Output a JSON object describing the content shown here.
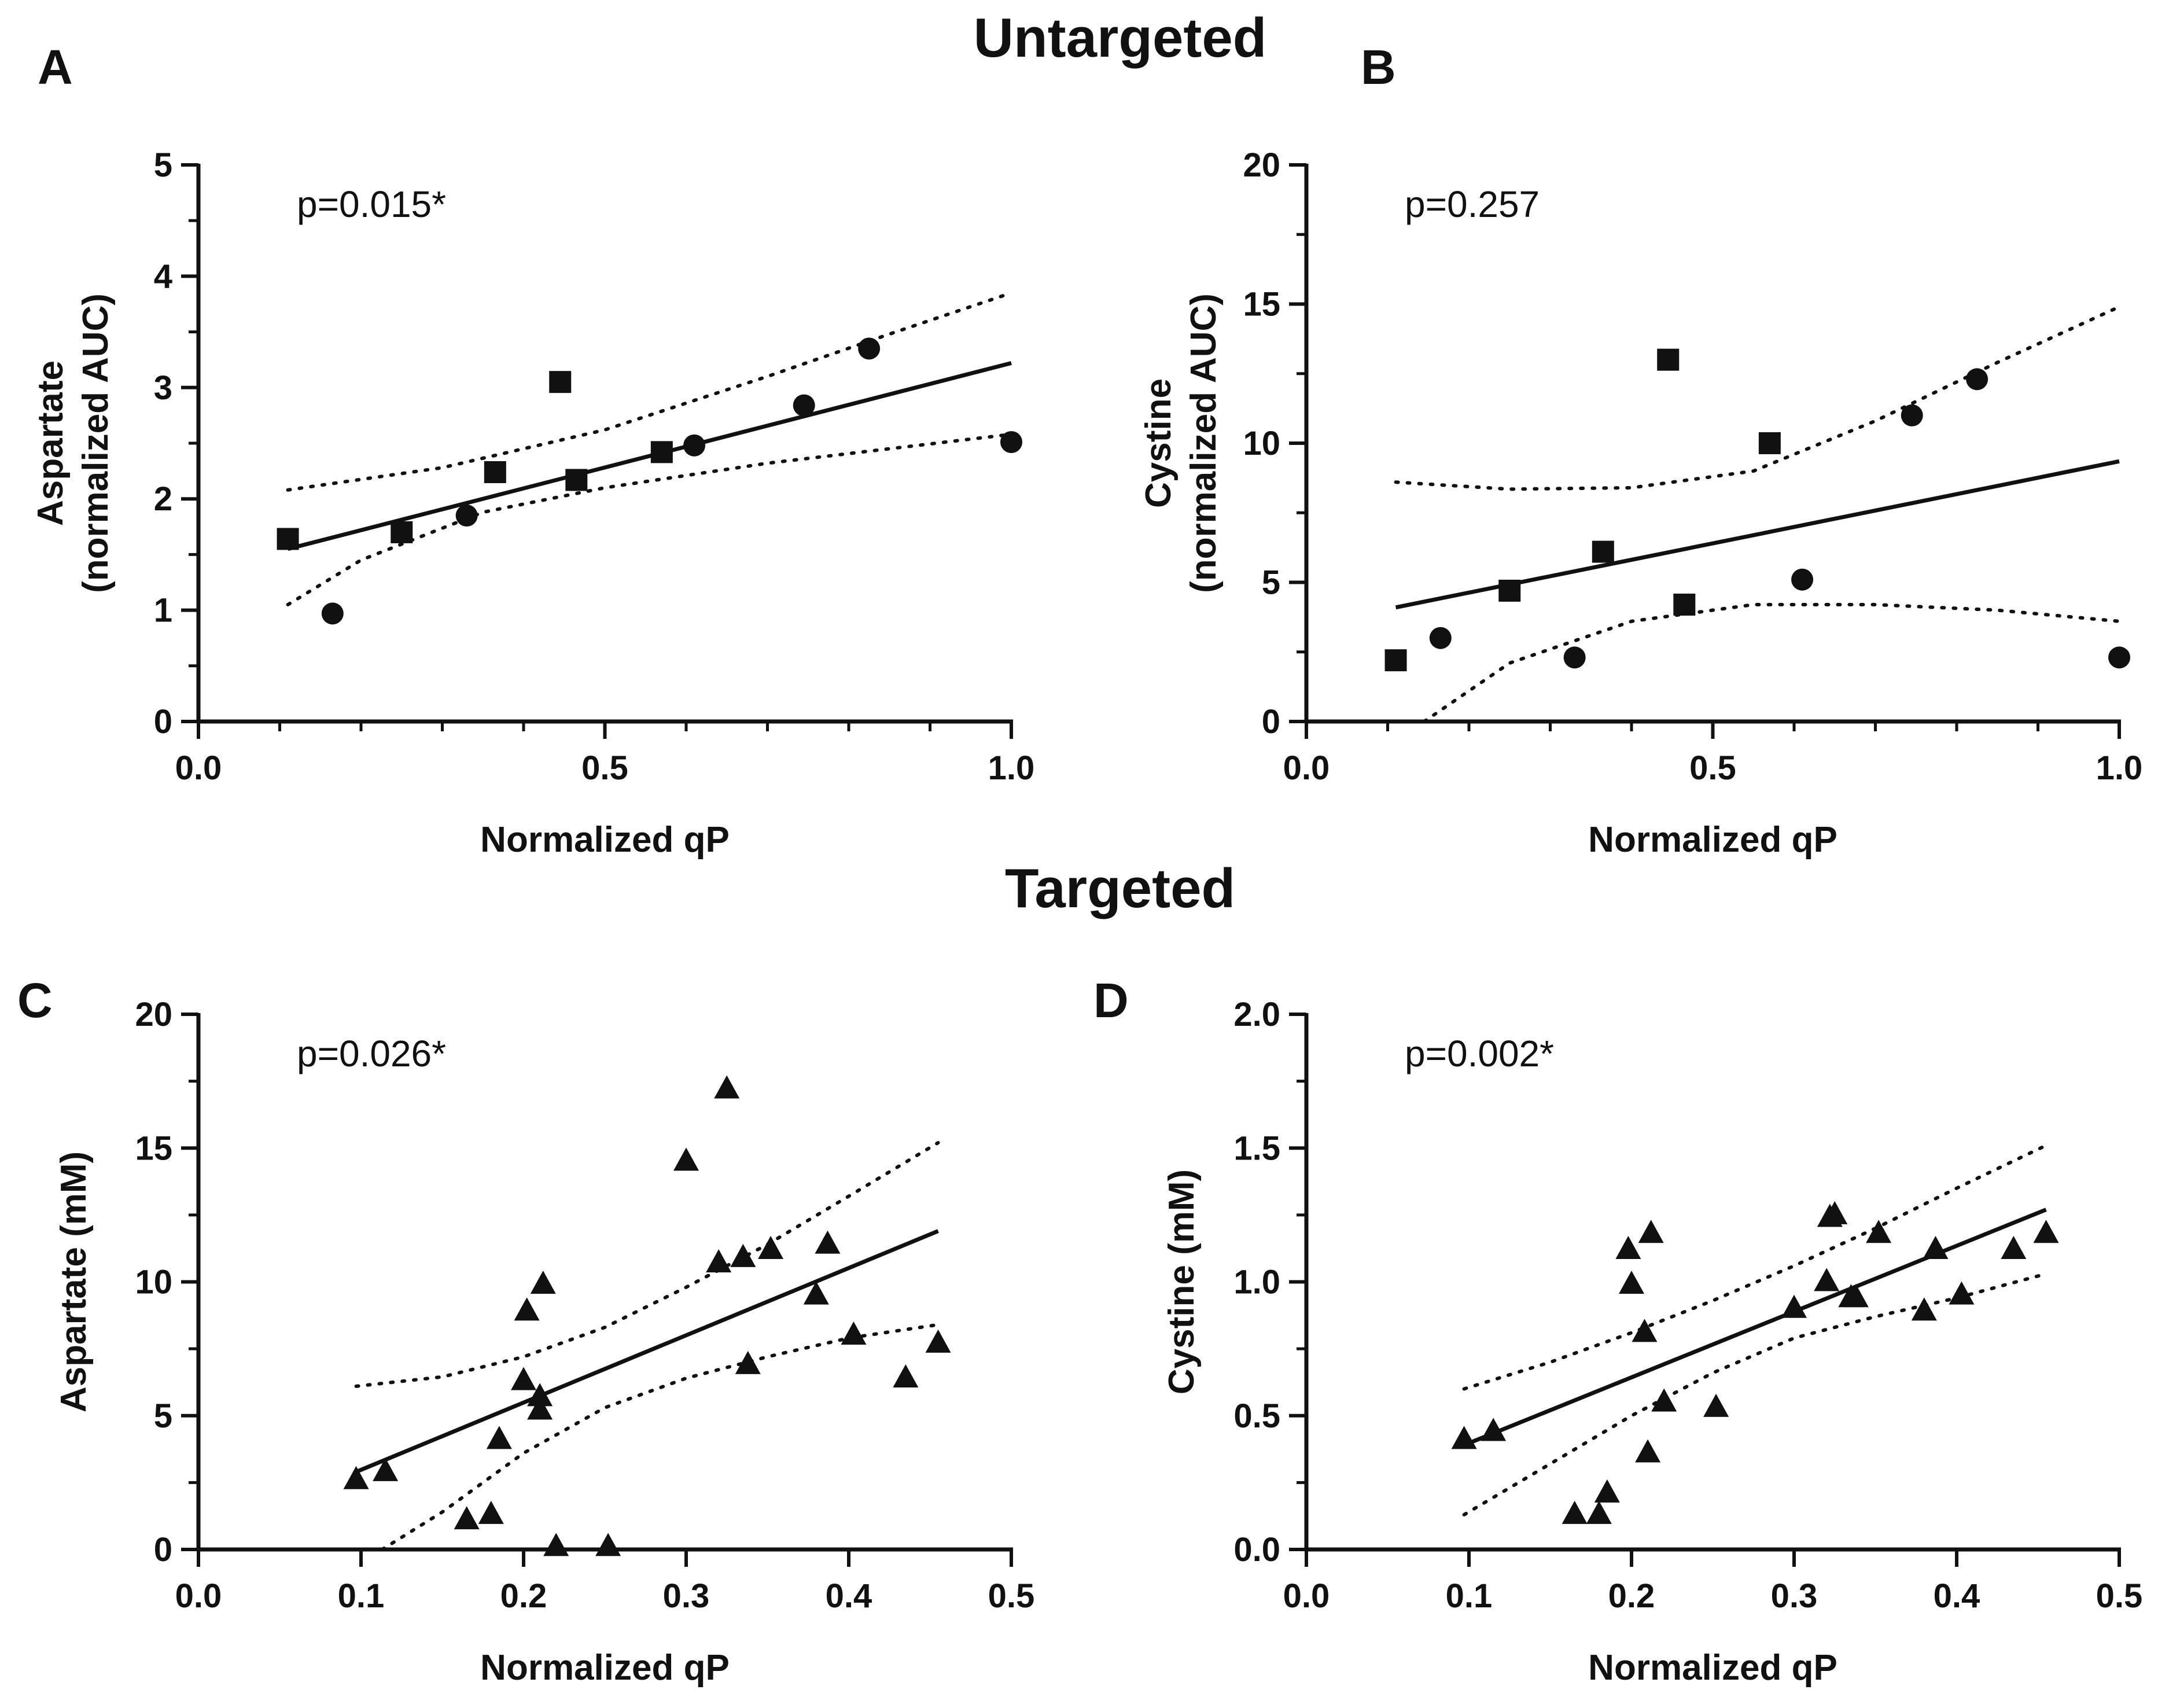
{
  "sections": {
    "top": "Untargeted",
    "bottom": "Targeted"
  },
  "chart_data": [
    {
      "id": "A",
      "type": "scatter",
      "title": "",
      "xlabel": "Normalized qP",
      "ylabel_lines": [
        "Aspartate",
        "(normalized AUC)"
      ],
      "xlim": [
        0,
        1
      ],
      "ylim": [
        0,
        5
      ],
      "xticks": [
        0,
        0.5,
        1
      ],
      "xtick_labels": [
        "0.0",
        "0.5",
        "1.0"
      ],
      "yticks": [
        0,
        1,
        2,
        3,
        4,
        5
      ],
      "ytick_labels": [
        "0",
        "1",
        "2",
        "3",
        "4",
        "5"
      ],
      "annotation": "p=0.015*",
      "series": [
        {
          "name": "squares",
          "marker": "square",
          "points": [
            [
              0.11,
              1.64
            ],
            [
              0.25,
              1.7
            ],
            [
              0.365,
              2.24
            ],
            [
              0.445,
              3.05
            ],
            [
              0.465,
              2.17
            ],
            [
              0.57,
              2.42
            ]
          ]
        },
        {
          "name": "circles",
          "marker": "circle",
          "points": [
            [
              0.165,
              0.97
            ],
            [
              0.33,
              1.85
            ],
            [
              0.61,
              2.48
            ],
            [
              0.745,
              2.84
            ],
            [
              0.825,
              3.35
            ],
            [
              1.0,
              2.51
            ]
          ]
        }
      ],
      "fit": {
        "x": [
          0.11,
          1.0
        ],
        "y": [
          1.55,
          3.22
        ]
      },
      "ci_upper": [
        [
          0.11,
          2.08
        ],
        [
          0.3,
          2.28
        ],
        [
          0.5,
          2.62
        ],
        [
          0.7,
          3.1
        ],
        [
          0.85,
          3.48
        ],
        [
          1.0,
          3.85
        ]
      ],
      "ci_lower": [
        [
          0.11,
          1.05
        ],
        [
          0.2,
          1.45
        ],
        [
          0.35,
          1.88
        ],
        [
          0.5,
          2.1
        ],
        [
          0.7,
          2.32
        ],
        [
          0.85,
          2.45
        ],
        [
          1.0,
          2.58
        ]
      ]
    },
    {
      "id": "B",
      "type": "scatter",
      "title": "",
      "xlabel": "Normalized qP",
      "ylabel_lines": [
        "Cystine",
        "(normalized AUC)"
      ],
      "xlim": [
        0,
        1
      ],
      "ylim": [
        0,
        20
      ],
      "xticks": [
        0,
        0.5,
        1
      ],
      "xtick_labels": [
        "0.0",
        "0.5",
        "1.0"
      ],
      "yticks": [
        0,
        5,
        10,
        15,
        20
      ],
      "ytick_labels": [
        "0",
        "5",
        "10",
        "15",
        "20"
      ],
      "annotation": "p=0.257",
      "series": [
        {
          "name": "squares",
          "marker": "square",
          "points": [
            [
              0.11,
              2.2
            ],
            [
              0.25,
              4.7
            ],
            [
              0.365,
              6.1
            ],
            [
              0.445,
              13.0
            ],
            [
              0.465,
              4.2
            ],
            [
              0.57,
              10.0
            ]
          ]
        },
        {
          "name": "circles",
          "marker": "circle",
          "points": [
            [
              0.165,
              3.0
            ],
            [
              0.33,
              2.3
            ],
            [
              0.61,
              5.1
            ],
            [
              0.745,
              11.0
            ],
            [
              0.825,
              12.3
            ],
            [
              1.0,
              2.3
            ]
          ]
        }
      ],
      "fit": {
        "x": [
          0.11,
          1.0
        ],
        "y": [
          4.1,
          9.35
        ]
      },
      "ci_upper": [
        [
          0.11,
          8.6
        ],
        [
          0.25,
          8.35
        ],
        [
          0.4,
          8.4
        ],
        [
          0.55,
          9.0
        ],
        [
          0.7,
          10.8
        ],
        [
          0.85,
          12.9
        ],
        [
          1.0,
          14.9
        ]
      ],
      "ci_lower": [
        [
          0.145,
          0.0
        ],
        [
          0.25,
          2.1
        ],
        [
          0.4,
          3.6
        ],
        [
          0.55,
          4.2
        ],
        [
          0.7,
          4.2
        ],
        [
          0.85,
          4.0
        ],
        [
          1.0,
          3.6
        ]
      ]
    },
    {
      "id": "C",
      "type": "scatter",
      "title": "",
      "xlabel": "Normalized qP",
      "ylabel_lines": [
        "Aspartate (mM)"
      ],
      "xlim": [
        0,
        0.5
      ],
      "ylim": [
        0,
        20
      ],
      "xticks": [
        0,
        0.1,
        0.2,
        0.3,
        0.4,
        0.5
      ],
      "xtick_labels": [
        "0.0",
        "0.1",
        "0.2",
        "0.3",
        "0.4",
        "0.5"
      ],
      "yticks": [
        0,
        5,
        10,
        15,
        20
      ],
      "ytick_labels": [
        "0",
        "5",
        "10",
        "15",
        "20"
      ],
      "annotation": "p=0.026*",
      "series": [
        {
          "name": "triangles",
          "marker": "triangle",
          "points": [
            [
              0.097,
              2.6
            ],
            [
              0.115,
              2.9
            ],
            [
              0.165,
              1.1
            ],
            [
              0.18,
              1.3
            ],
            [
              0.185,
              4.1
            ],
            [
              0.2,
              6.3
            ],
            [
              0.202,
              8.9
            ],
            [
              0.21,
              5.2
            ],
            [
              0.21,
              5.7
            ],
            [
              0.212,
              9.9
            ],
            [
              0.22,
              0.1
            ],
            [
              0.252,
              0.1
            ],
            [
              0.3,
              14.5
            ],
            [
              0.32,
              10.7
            ],
            [
              0.325,
              17.2
            ],
            [
              0.335,
              10.9
            ],
            [
              0.338,
              6.9
            ],
            [
              0.352,
              11.2
            ],
            [
              0.38,
              9.5
            ],
            [
              0.387,
              11.4
            ],
            [
              0.403,
              8.0
            ],
            [
              0.435,
              6.4
            ],
            [
              0.455,
              7.7
            ]
          ]
        }
      ],
      "fit": {
        "x": [
          0.097,
          0.455
        ],
        "y": [
          2.9,
          11.9
        ]
      },
      "ci_upper": [
        [
          0.097,
          6.1
        ],
        [
          0.15,
          6.45
        ],
        [
          0.2,
          7.2
        ],
        [
          0.25,
          8.3
        ],
        [
          0.3,
          9.8
        ],
        [
          0.35,
          11.4
        ],
        [
          0.4,
          13.2
        ],
        [
          0.455,
          15.2
        ]
      ],
      "ci_lower": [
        [
          0.113,
          0.0
        ],
        [
          0.15,
          1.4
        ],
        [
          0.2,
          3.6
        ],
        [
          0.25,
          5.3
        ],
        [
          0.3,
          6.4
        ],
        [
          0.35,
          7.2
        ],
        [
          0.4,
          7.9
        ],
        [
          0.455,
          8.4
        ]
      ]
    },
    {
      "id": "D",
      "type": "scatter",
      "title": "",
      "xlabel": "Normalized qP",
      "ylabel_lines": [
        "Cystine (mM)"
      ],
      "xlim": [
        0,
        0.5
      ],
      "ylim": [
        0,
        2
      ],
      "xticks": [
        0,
        0.1,
        0.2,
        0.3,
        0.4,
        0.5
      ],
      "xtick_labels": [
        "0.0",
        "0.1",
        "0.2",
        "0.3",
        "0.4",
        "0.5"
      ],
      "yticks": [
        0,
        0.5,
        1,
        1.5,
        2
      ],
      "ytick_labels": [
        "0.0",
        "0.5",
        "1.0",
        "1.5",
        "2.0"
      ],
      "annotation": "p=0.002*",
      "series": [
        {
          "name": "triangles",
          "marker": "triangle",
          "points": [
            [
              0.097,
              0.41
            ],
            [
              0.115,
              0.44
            ],
            [
              0.165,
              0.13
            ],
            [
              0.18,
              0.13
            ],
            [
              0.185,
              0.21
            ],
            [
              0.198,
              1.12
            ],
            [
              0.2,
              0.99
            ],
            [
              0.208,
              0.81
            ],
            [
              0.21,
              0.36
            ],
            [
              0.212,
              1.18
            ],
            [
              0.22,
              0.55
            ],
            [
              0.252,
              0.53
            ],
            [
              0.3,
              0.9
            ],
            [
              0.32,
              1.0
            ],
            [
              0.322,
              1.24
            ],
            [
              0.325,
              1.25
            ],
            [
              0.335,
              0.94
            ],
            [
              0.338,
              0.94
            ],
            [
              0.352,
              1.18
            ],
            [
              0.38,
              0.89
            ],
            [
              0.387,
              1.12
            ],
            [
              0.403,
              0.95
            ],
            [
              0.435,
              1.12
            ],
            [
              0.455,
              1.18
            ]
          ]
        }
      ],
      "fit": {
        "x": [
          0.097,
          0.455
        ],
        "y": [
          0.39,
          1.27
        ]
      },
      "ci_upper": [
        [
          0.097,
          0.6
        ],
        [
          0.15,
          0.7
        ],
        [
          0.2,
          0.81
        ],
        [
          0.25,
          0.93
        ],
        [
          0.3,
          1.06
        ],
        [
          0.35,
          1.2
        ],
        [
          0.4,
          1.35
        ],
        [
          0.455,
          1.51
        ]
      ],
      "ci_lower": [
        [
          0.097,
          0.13
        ],
        [
          0.15,
          0.32
        ],
        [
          0.2,
          0.5
        ],
        [
          0.25,
          0.66
        ],
        [
          0.3,
          0.79
        ],
        [
          0.35,
          0.87
        ],
        [
          0.4,
          0.94
        ],
        [
          0.455,
          1.03
        ]
      ]
    }
  ]
}
